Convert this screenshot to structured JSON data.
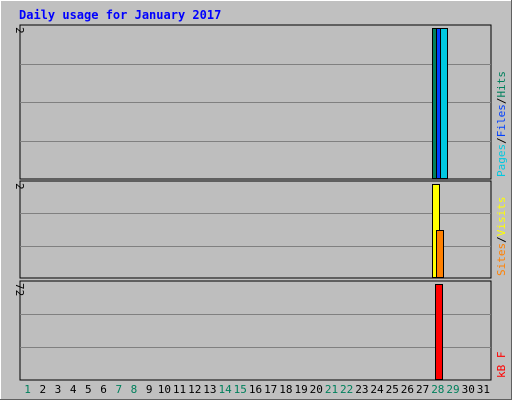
{
  "chart_data": [
    {
      "type": "bar",
      "title": "Daily usage for January 2017",
      "categories": [
        "1",
        "2",
        "3",
        "4",
        "5",
        "6",
        "7",
        "8",
        "9",
        "10",
        "11",
        "12",
        "13",
        "14",
        "15",
        "16",
        "17",
        "18",
        "19",
        "20",
        "21",
        "22",
        "23",
        "24",
        "25",
        "26",
        "27",
        "28",
        "29",
        "30",
        "31"
      ],
      "weekend_days": [
        "1",
        "7",
        "8",
        "14",
        "15",
        "21",
        "22",
        "28",
        "29"
      ],
      "panel": "hits-files-pages",
      "ylim": [
        0,
        2
      ],
      "ytick_label": "2",
      "grid": true,
      "legend": [
        "Pages",
        "/",
        "Files",
        "/",
        "Hits"
      ],
      "series": [
        {
          "name": "Hits",
          "color": "#00805c",
          "values": [
            0,
            0,
            0,
            0,
            0,
            0,
            0,
            0,
            0,
            0,
            0,
            0,
            0,
            0,
            0,
            0,
            0,
            0,
            0,
            0,
            0,
            0,
            0,
            0,
            0,
            0,
            0,
            2,
            0,
            0,
            0
          ]
        },
        {
          "name": "Files",
          "color": "#0040ff",
          "values": [
            0,
            0,
            0,
            0,
            0,
            0,
            0,
            0,
            0,
            0,
            0,
            0,
            0,
            0,
            0,
            0,
            0,
            0,
            0,
            0,
            0,
            0,
            0,
            0,
            0,
            0,
            0,
            2,
            0,
            0,
            0
          ]
        },
        {
          "name": "Pages",
          "color": "#00c8e0",
          "values": [
            0,
            0,
            0,
            0,
            0,
            0,
            0,
            0,
            0,
            0,
            0,
            0,
            0,
            0,
            0,
            0,
            0,
            0,
            0,
            0,
            0,
            0,
            0,
            0,
            0,
            0,
            0,
            2,
            0,
            0,
            0
          ]
        }
      ]
    },
    {
      "type": "bar",
      "panel": "visits-sites",
      "ylim": [
        0,
        2
      ],
      "ytick_label": "2",
      "grid": true,
      "legend": [
        "Sites",
        "/",
        "Visits"
      ],
      "series": [
        {
          "name": "Visits",
          "color": "#ffff00",
          "values": [
            0,
            0,
            0,
            0,
            0,
            0,
            0,
            0,
            0,
            0,
            0,
            0,
            0,
            0,
            0,
            0,
            0,
            0,
            0,
            0,
            0,
            0,
            0,
            0,
            0,
            0,
            0,
            2,
            0,
            0,
            0
          ]
        },
        {
          "name": "Sites",
          "color": "#ff8000",
          "values": [
            0,
            0,
            0,
            0,
            0,
            0,
            0,
            0,
            0,
            0,
            0,
            0,
            0,
            0,
            0,
            0,
            0,
            0,
            0,
            0,
            0,
            0,
            0,
            0,
            0,
            0,
            0,
            1,
            0,
            0,
            0
          ]
        }
      ]
    },
    {
      "type": "bar",
      "panel": "kbytes",
      "ylim": [
        0,
        72
      ],
      "ytick_label": "72",
      "grid": true,
      "legend": [
        "kB F"
      ],
      "series": [
        {
          "name": "kB F",
          "color": "#ff0000",
          "values": [
            0,
            0,
            0,
            0,
            0,
            0,
            0,
            0,
            0,
            0,
            0,
            0,
            0,
            0,
            0,
            0,
            0,
            0,
            0,
            0,
            0,
            0,
            0,
            0,
            0,
            0,
            0,
            72,
            0,
            0,
            0
          ]
        }
      ]
    }
  ],
  "colors": {
    "frame_bg": "#c0c0c0",
    "plot_bg": "#bebebe",
    "title": "#0000ff",
    "weekday_label": "#000000",
    "weekend_label": "#00805c",
    "slash": "#000000"
  }
}
